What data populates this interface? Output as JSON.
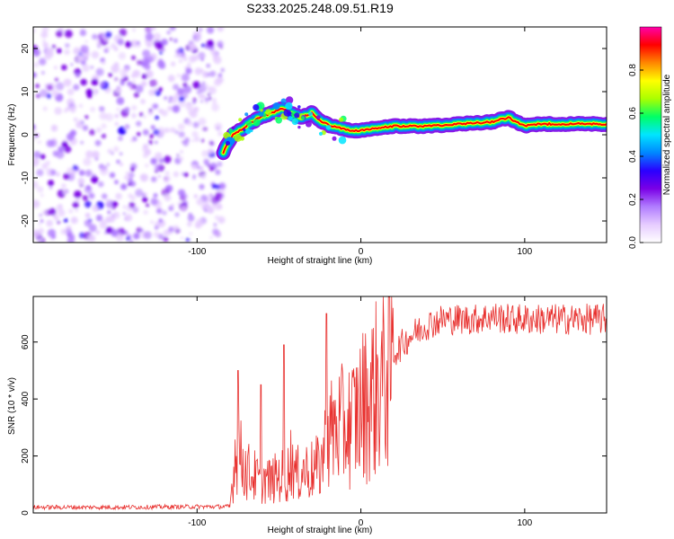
{
  "title": "S233.2025.248.09.51.R19",
  "colors": {
    "snr_line": "#e8302e",
    "spectrogram_palette": [
      "#ffffff",
      "#e6ccff",
      "#b07cff",
      "#7a00e6",
      "#2a00ff",
      "#0088ff",
      "#00e5ff",
      "#00ff66",
      "#aaff00",
      "#ffff00",
      "#ff8800",
      "#ff0000",
      "#ff00aa"
    ]
  },
  "chart_data": [
    {
      "id": "spectrogram",
      "type": "heatmap",
      "title": "S233.2025.248.09.51.R19",
      "xlabel": "Height of straight line (km)",
      "ylabel": "Frequency (Hz)",
      "xlim": [
        -200,
        150
      ],
      "ylim": [
        -25,
        25
      ],
      "xticks": [
        -100,
        0,
        100
      ],
      "yticks": [
        -20,
        -10,
        0,
        10,
        20
      ],
      "noise_region_x": [
        -200,
        -84
      ],
      "ridge": {
        "x": [
          -84,
          -78,
          -70,
          -62,
          -55,
          -48,
          -42,
          -36,
          -30,
          -24,
          -18,
          -12,
          -6,
          0,
          10,
          20,
          40,
          60,
          80,
          90,
          100,
          110,
          130,
          150
        ],
        "freq_hz": [
          -4,
          0,
          2,
          4,
          5,
          6,
          5,
          4,
          5,
          3,
          2,
          1.5,
          1,
          1,
          1.5,
          2,
          2,
          2.5,
          3,
          4,
          2,
          2.5,
          2.5,
          2.5
        ]
      },
      "colorbar": {
        "label": "Normalized spectral amplitude",
        "range": [
          0,
          1
        ],
        "ticks": [
          0.0,
          0.2,
          0.4,
          0.6,
          0.8
        ]
      }
    },
    {
      "id": "snr",
      "type": "line",
      "xlabel": "Height of straight line (km)",
      "ylabel": "SNR (10 * v/v)",
      "xlim": [
        -200,
        150
      ],
      "ylim": [
        0,
        760
      ],
      "xticks": [
        -100,
        0,
        100
      ],
      "yticks": [
        0,
        200,
        400,
        600
      ],
      "series": [
        {
          "name": "SNR",
          "x": [
            -200,
            -150,
            -100,
            -80,
            -78,
            -76,
            -74,
            -70,
            -65,
            -62,
            -58,
            -55,
            -50,
            -45,
            -42,
            -40,
            -35,
            -30,
            -25,
            -21,
            -18,
            -15,
            -10,
            -5,
            0,
            5,
            10,
            15,
            20,
            30,
            40,
            50,
            60,
            70,
            80,
            90,
            100,
            110,
            120,
            130,
            140,
            150
          ],
          "values": [
            20,
            20,
            22,
            22,
            130,
            250,
            200,
            150,
            130,
            110,
            120,
            110,
            130,
            130,
            200,
            130,
            150,
            150,
            160,
            250,
            280,
            300,
            300,
            320,
            370,
            400,
            440,
            500,
            560,
            620,
            660,
            680,
            680,
            680,
            690,
            680,
            680,
            680,
            680,
            680,
            680,
            680
          ],
          "spikes": [
            {
              "x": -75,
              "y": 500
            },
            {
              "x": -61,
              "y": 450
            },
            {
              "x": -47,
              "y": 590
            },
            {
              "x": -21,
              "y": 700
            }
          ]
        }
      ]
    }
  ]
}
